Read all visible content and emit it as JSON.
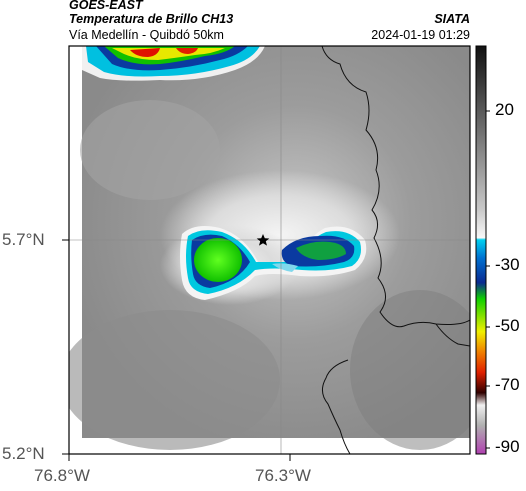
{
  "header": {
    "satellite": "GOES-EAST",
    "product": "Temperatura de Brillo CH13",
    "route": "Vía Medellín - Quibdó 50km",
    "organization": "SIATA",
    "timestamp": "2024-01-19 01:29"
  },
  "map": {
    "lat_ticks": [
      "5.7°N",
      "5.2°N"
    ],
    "lon_ticks": [
      "76.8°W",
      "76.3°W"
    ],
    "marker": "star-marker"
  },
  "colorbar": {
    "ticks": [
      "20",
      "-30",
      "-50",
      "-70",
      "-90"
    ],
    "colors": {
      "warm_top": "#111111",
      "warm_gray": "#9a9a9a",
      "cyan": "#00c8e0",
      "blue": "#0a2a90",
      "green": "#10d000",
      "yellow": "#f0f000",
      "red": "#e02000",
      "magenta": "#b040b0"
    }
  }
}
